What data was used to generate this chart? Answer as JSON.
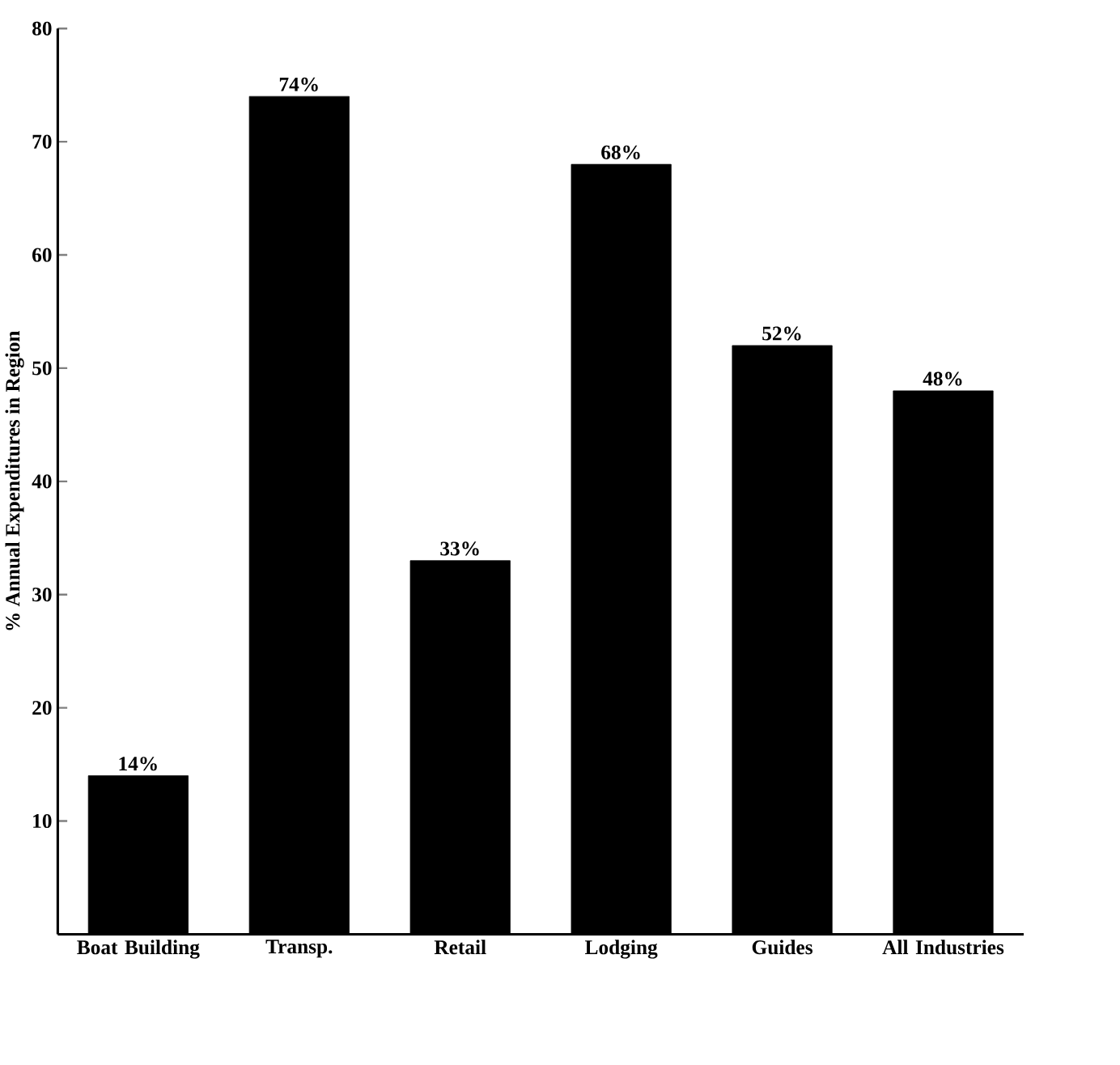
{
  "chart_data": {
    "type": "bar",
    "ylabel": "% Annual Expenditures in Region",
    "categories": [
      "Boat Building",
      "Transp.",
      "Retail",
      "Lodging",
      "Guides",
      "All Industries"
    ],
    "values": [
      14,
      74,
      33,
      68,
      52,
      48
    ],
    "value_labels": [
      "14%",
      "74%",
      "33%",
      "68%",
      "52%",
      "48%"
    ],
    "color": "#000000",
    "ylim": [
      0,
      80
    ],
    "yticks": [
      10,
      20,
      30,
      40,
      50,
      60,
      70,
      80
    ],
    "grid": false
  }
}
